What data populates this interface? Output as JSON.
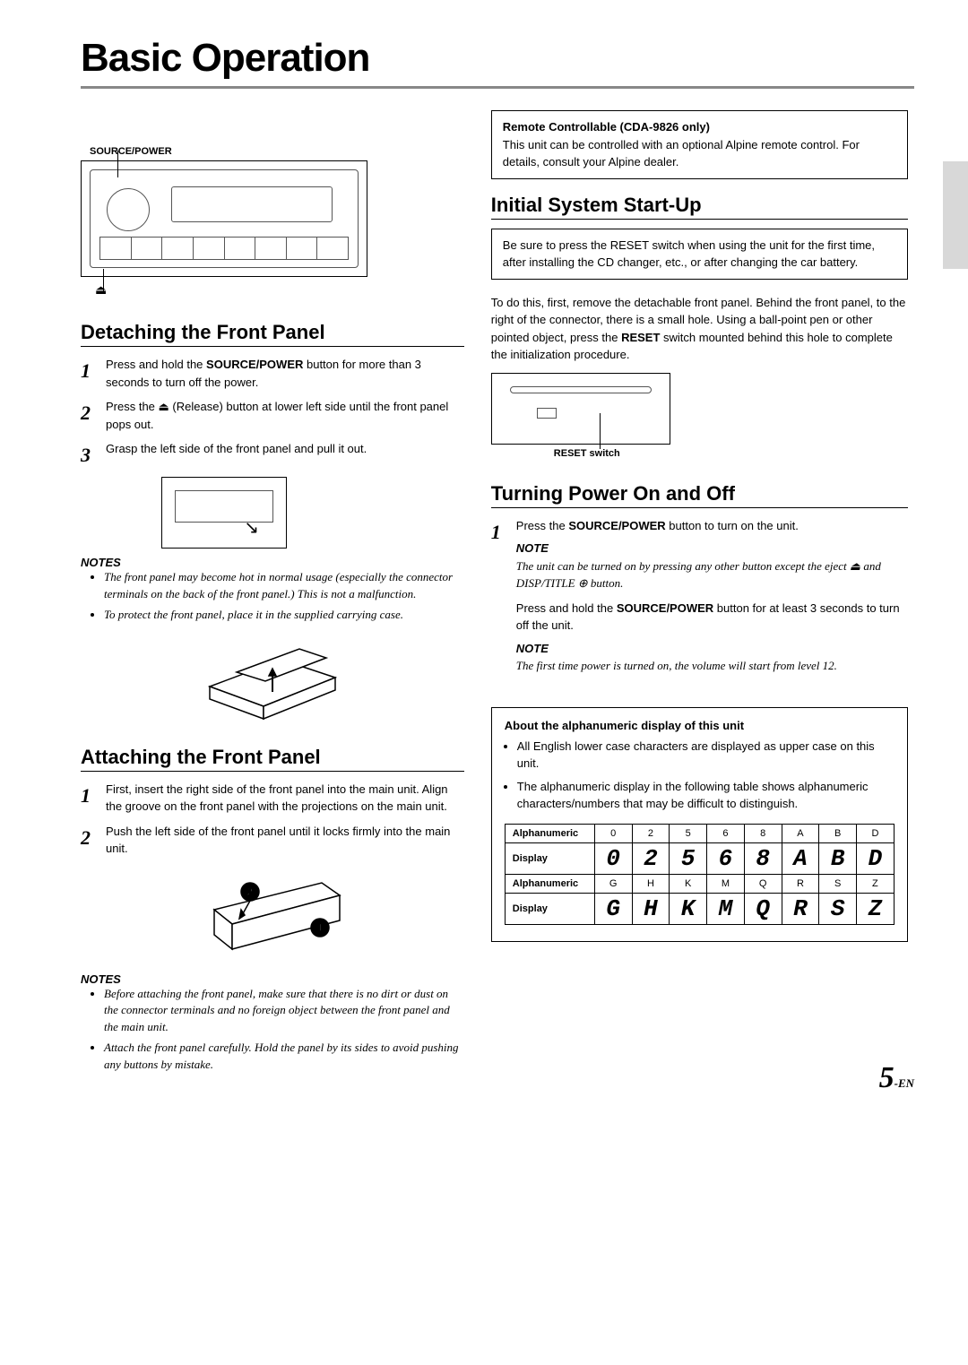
{
  "page": {
    "title": "Basic Operation",
    "number": "5",
    "number_suffix": "-EN"
  },
  "left": {
    "source_power_label": "SOURCE/POWER",
    "eject_symbol": "⏏",
    "detaching": {
      "heading": "Detaching the Front Panel",
      "steps": [
        "Press and hold the <b>SOURCE/POWER</b> button for more than 3 seconds to turn off the power.",
        "Press the ⏏ (Release) button at lower left side until the front panel pops out.",
        "Grasp the left side of the front panel and pull it out."
      ],
      "notes_heading": "NOTES",
      "notes": [
        "The front panel may become hot in normal usage (especially the connector terminals on the back of the front panel.) This is not a malfunction.",
        "To protect the front panel, place it in the supplied carrying case."
      ]
    },
    "attaching": {
      "heading": "Attaching the Front Panel",
      "steps": [
        "First, insert the right side of the front panel into the main unit. Align the groove on the front panel with the projections on the main unit.",
        "Push the left side of the front panel until it locks firmly into the main unit."
      ],
      "notes_heading": "NOTES",
      "notes": [
        "Before attaching the front panel, make sure that there is no dirt or dust on the connector terminals and no foreign object between the front panel and the main unit.",
        "Attach the front panel carefully. Hold the panel by its sides to avoid pushing any buttons by mistake."
      ]
    }
  },
  "right": {
    "remote_box": {
      "title": "Remote Controllable (CDA-9826 only)",
      "text": "This unit can be controlled with an optional Alpine remote control. For details, consult your Alpine dealer."
    },
    "startup": {
      "heading": "Initial System Start-Up",
      "box_text": "Be sure to press the RESET switch when using the unit for the first time, after installing the CD changer, etc., or after changing the car battery.",
      "body": "To do this, first, remove the detachable front panel. Behind the front panel, to the right of the connector, there is a small hole. Using a ball-point pen or other pointed object, press the <b>RESET</b> switch mounted behind this hole to complete the initialization procedure.",
      "reset_label": "RESET switch"
    },
    "power": {
      "heading": "Turning Power On and Off",
      "step1": "Press the <b>SOURCE/POWER</b> button to turn on the unit.",
      "note1_heading": "NOTE",
      "note1": "The unit can be turned on by pressing any other button except the eject ⏏ and DISP/TITLE ⊕ button.",
      "body2": "Press and hold the <b>SOURCE/POWER</b> button for at least 3 seconds to turn off the unit.",
      "note2_heading": "NOTE",
      "note2": "The first time power is turned on, the volume will start from level 12."
    },
    "alpha": {
      "title": "About the alphanumeric display of this unit",
      "bullets": [
        "All English lower case characters are displayed as upper case on this unit.",
        "The alphanumeric display in the following table shows alphanumeric characters/numbers that may be difficult to distinguish."
      ],
      "table": {
        "row_label_1": "Alphanumeric",
        "row_label_2": "Display",
        "row1_chars": [
          "0",
          "2",
          "5",
          "6",
          "8",
          "A",
          "B",
          "D"
        ],
        "row1_disp": [
          "0",
          "2",
          "5",
          "6",
          "8",
          "A",
          "B",
          "D"
        ],
        "row2_chars": [
          "G",
          "H",
          "K",
          "M",
          "Q",
          "R",
          "S",
          "Z"
        ],
        "row2_disp": [
          "G",
          "H",
          "K",
          "M",
          "Q",
          "R",
          "S",
          "Z"
        ]
      }
    }
  },
  "colors": {
    "rule": "#888888",
    "text": "#000000",
    "sidetab": "#d8d8d8"
  }
}
